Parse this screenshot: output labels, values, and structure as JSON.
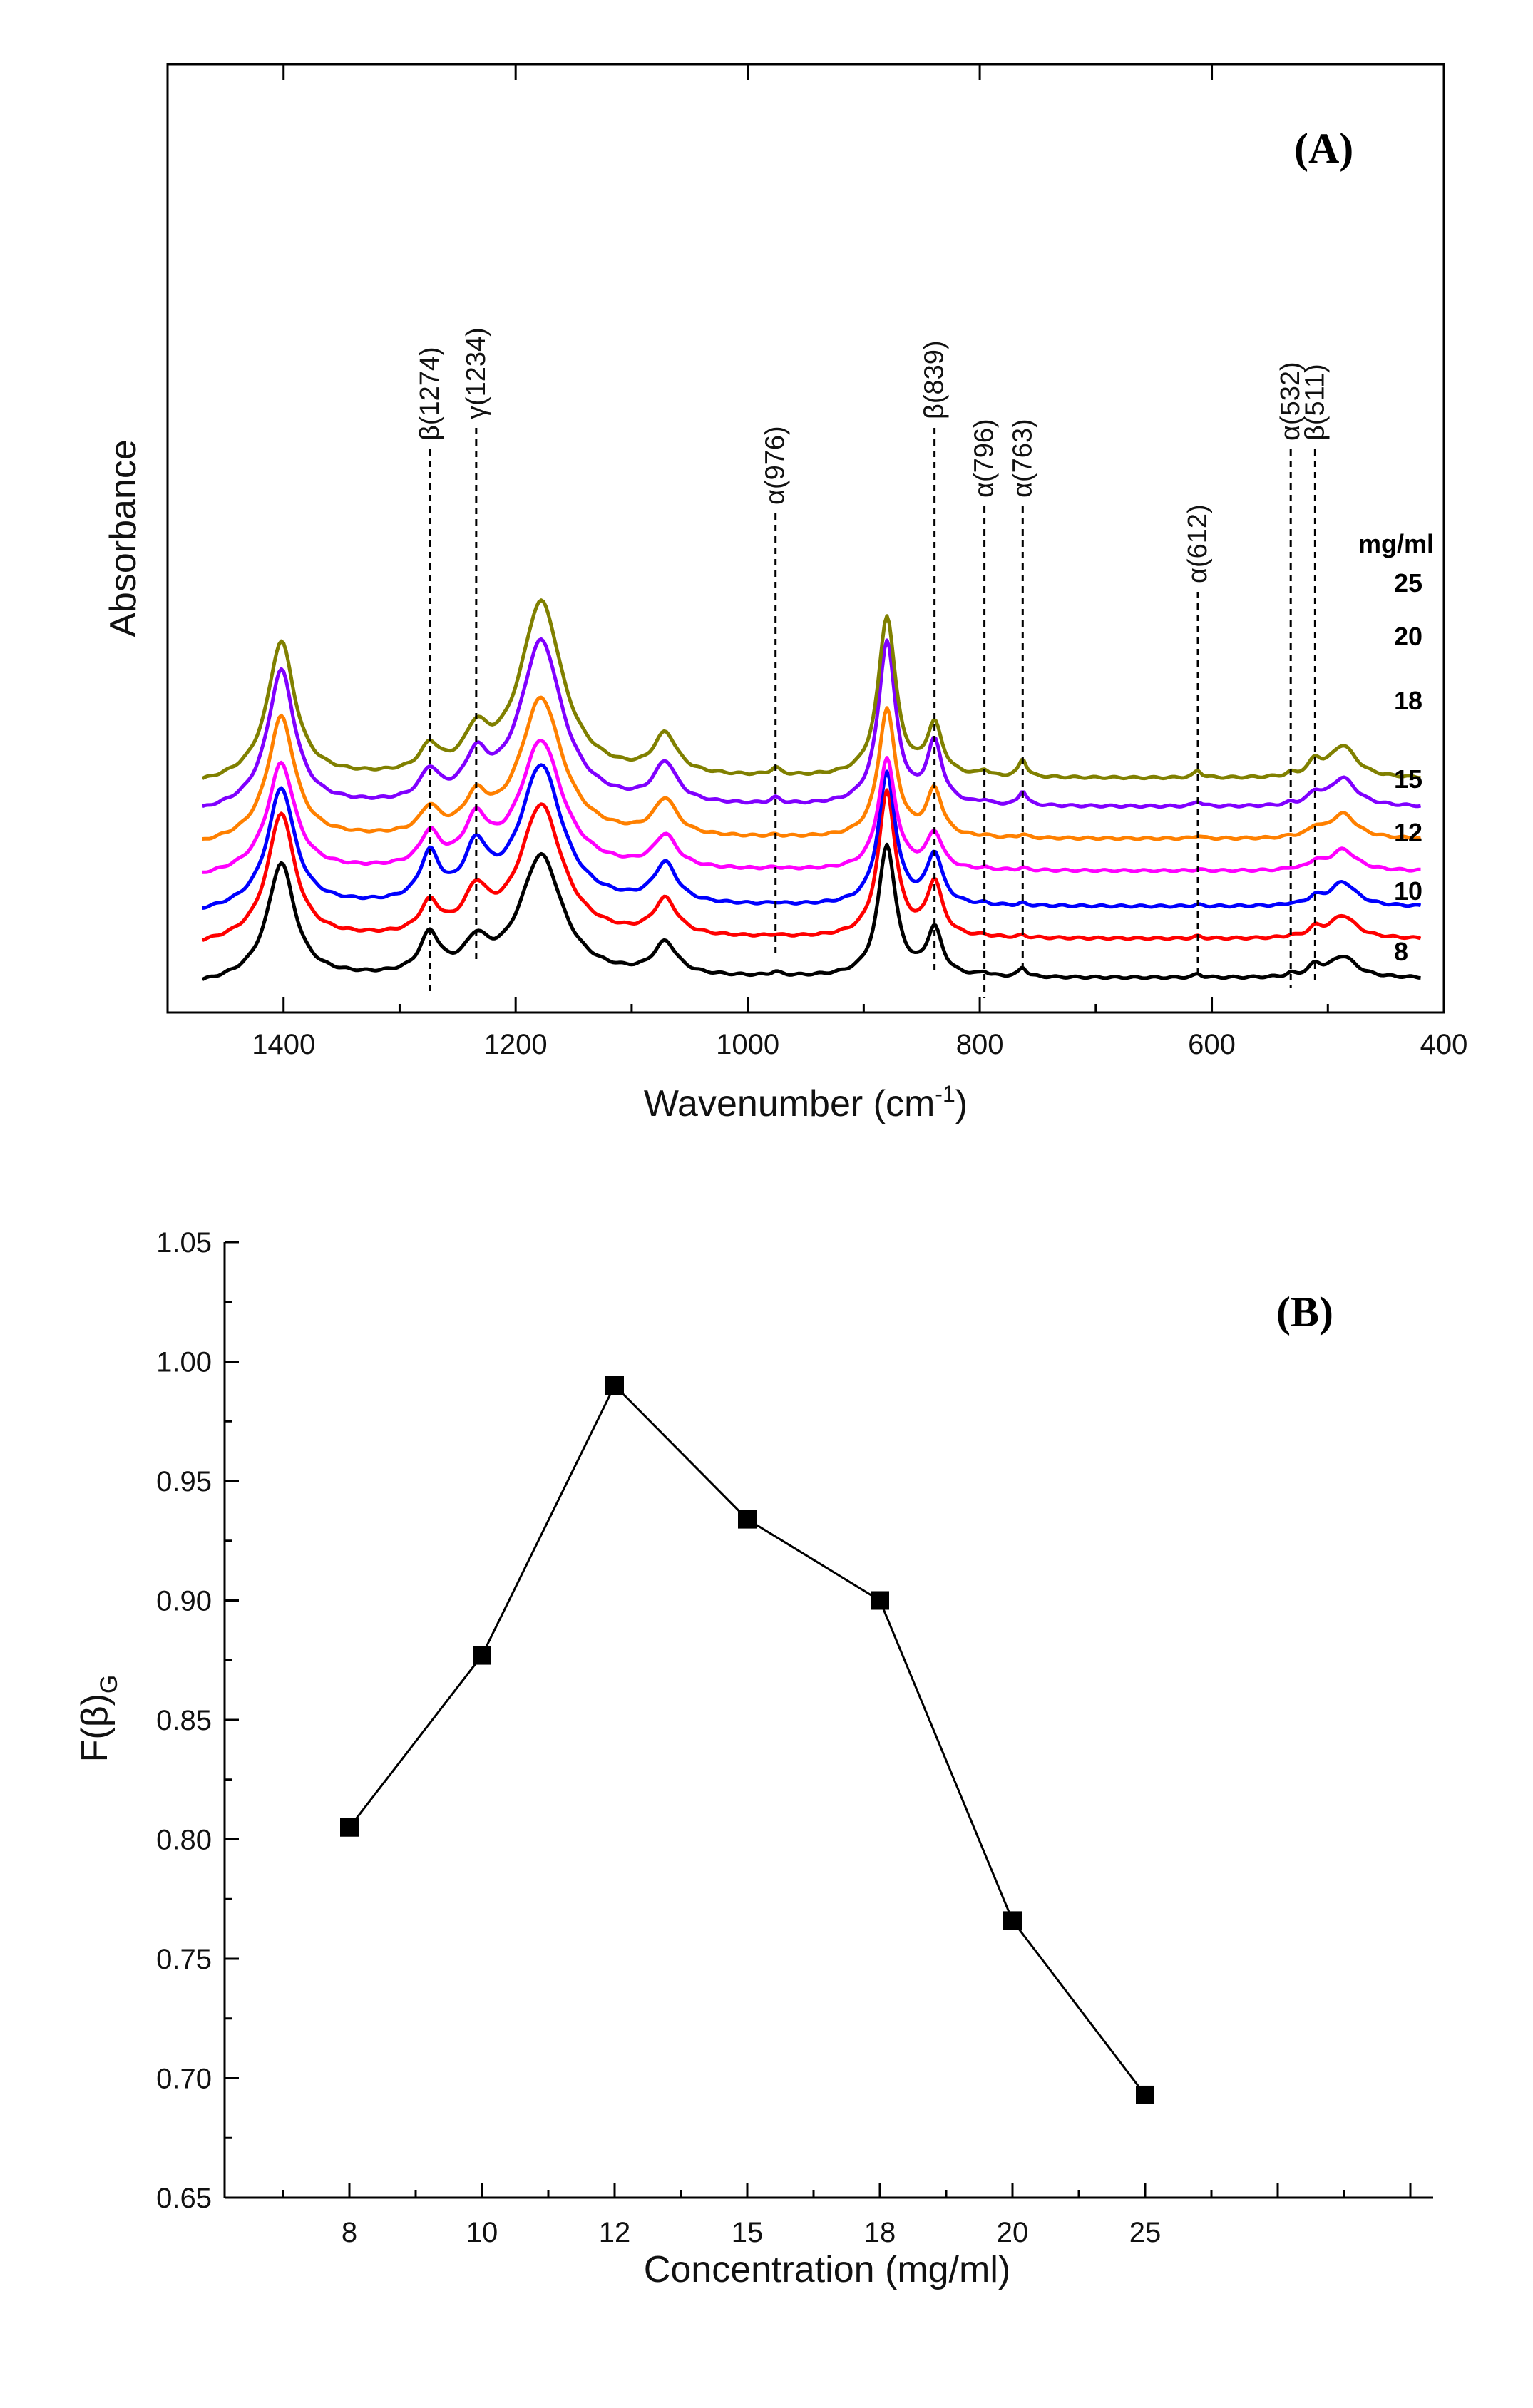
{
  "chart_data": [
    {
      "type": "line",
      "panel_tag": "(A)",
      "title": "",
      "xlabel": "Wavenumber (cm",
      "xlabel_sup": "-1",
      "xlabel_end": ")",
      "ylabel": "Absorbance",
      "xlim": [
        1500,
        400
      ],
      "x_reversed": true,
      "xticks": [
        1400,
        1200,
        1000,
        800,
        600,
        400
      ],
      "xtick_labels": [
        "1400",
        "1200",
        "1000",
        "800",
        "600",
        "400"
      ],
      "legend_title": "mg/ml",
      "series": [
        {
          "name": "8",
          "color": "#000000",
          "baseline": 0.0
        },
        {
          "name": "10",
          "color": "#ff0000",
          "baseline": 0.55
        },
        {
          "name": "12",
          "color": "#0000ff",
          "baseline": 1.0
        },
        {
          "name": "15",
          "color": "#ff00ff",
          "baseline": 1.5
        },
        {
          "name": "18",
          "color": "#ff8000",
          "baseline": 1.95
        },
        {
          "name": "20",
          "color": "#8000ff",
          "baseline": 2.4
        },
        {
          "name": "25",
          "color": "#808000",
          "baseline": 2.8
        }
      ],
      "peaks_x": [
        1402,
        1274,
        1234,
        1178,
        1071,
        976,
        880,
        839,
        796,
        763,
        612,
        532,
        511,
        487
      ],
      "peak_heights": [
        [
          1.6,
          0.55,
          0.4,
          1.7,
          0.45,
          0.05,
          1.85,
          0.65,
          0.05,
          0.13,
          0.05,
          0.04,
          0.15,
          0.3
        ],
        [
          1.75,
          0.42,
          0.55,
          1.85,
          0.5,
          0.02,
          2.05,
          0.75,
          0.02,
          0.03,
          0.03,
          0.02,
          0.12,
          0.32
        ],
        [
          1.65,
          0.65,
          0.7,
          1.95,
          0.55,
          0.02,
          1.85,
          0.7,
          0.02,
          0.03,
          0.02,
          0.02,
          0.1,
          0.34
        ],
        [
          1.5,
          0.45,
          0.6,
          1.8,
          0.45,
          0.02,
          1.55,
          0.5,
          0.02,
          0.03,
          0.02,
          0.02,
          0.1,
          0.3
        ],
        [
          1.7,
          0.35,
          0.45,
          1.95,
          0.5,
          0.02,
          1.8,
          0.65,
          0.02,
          0.05,
          0.04,
          0.02,
          0.12,
          0.35
        ],
        [
          1.9,
          0.4,
          0.55,
          2.3,
          0.55,
          0.08,
          2.3,
          0.85,
          0.05,
          0.2,
          0.07,
          0.03,
          0.15,
          0.4
        ],
        [
          1.9,
          0.35,
          0.5,
          2.45,
          0.55,
          0.1,
          2.25,
          0.7,
          0.08,
          0.25,
          0.1,
          0.04,
          0.2,
          0.45
        ]
      ],
      "annotations": [
        {
          "label": "β(1274)",
          "x": 1274
        },
        {
          "label": "γ(1234)",
          "x": 1234
        },
        {
          "label": "α(976)",
          "x": 976
        },
        {
          "label": "β(839)",
          "x": 839
        },
        {
          "label": "α(796)",
          "x": 796
        },
        {
          "label": "α(763)",
          "x": 763
        },
        {
          "label": "α(612)",
          "x": 612
        },
        {
          "label": "α(532)",
          "x": 532
        },
        {
          "label": "β(511)",
          "x": 511
        }
      ]
    },
    {
      "type": "line",
      "panel_tag": "(B)",
      "title": "",
      "xlabel": "Concentration (mg/ml)",
      "ylabel": "F(β)",
      "ylabel_sub": "G",
      "categories": [
        "8",
        "10",
        "12",
        "15",
        "18",
        "20",
        "25"
      ],
      "values": [
        0.805,
        0.877,
        0.99,
        0.934,
        0.9,
        0.766,
        0.693
      ],
      "ylim": [
        0.65,
        1.05
      ],
      "yticks": [
        0.65,
        0.7,
        0.75,
        0.8,
        0.85,
        0.9,
        0.95,
        1.0,
        1.05
      ],
      "ytick_labels": [
        "0.65",
        "0.70",
        "0.75",
        "0.80",
        "0.85",
        "0.90",
        "0.95",
        "1.00",
        "1.05"
      ],
      "marker": "square",
      "color": "#000000"
    }
  ]
}
